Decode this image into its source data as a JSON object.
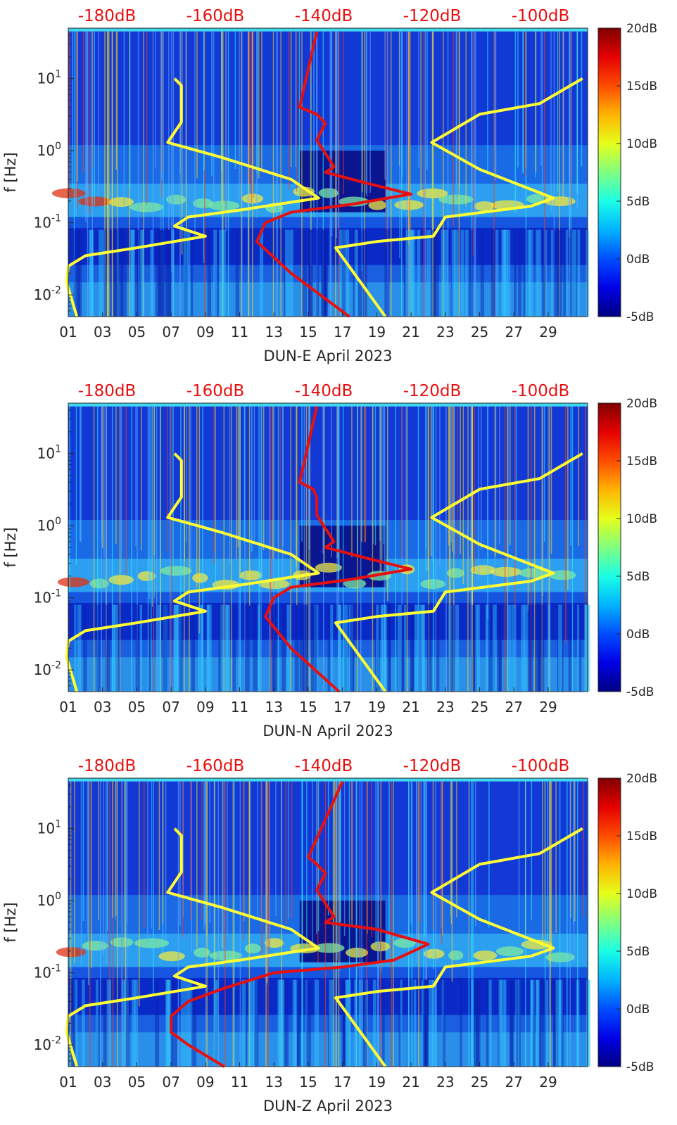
{
  "chart_data": [
    {
      "type": "heatmap",
      "xlabel": "DUN-E April 2023",
      "ylabel": "f [Hz]",
      "xticks": [
        "01",
        "03",
        "05",
        "07",
        "09",
        "11",
        "13",
        "15",
        "17",
        "19",
        "21",
        "23",
        "25",
        "27",
        "29"
      ],
      "yticks": [
        "10^-2",
        "10^-1",
        "10^0",
        "10^1"
      ],
      "ylim": [
        0.005,
        50
      ],
      "yscale": "log",
      "top_axis_labels": [
        "-180dB",
        "-160dB",
        "-140dB",
        "-120dB",
        "-100dB"
      ],
      "colorbar": {
        "labels": [
          "20dB",
          "15dB",
          "10dB",
          "5dB",
          "0dB",
          "-5dB"
        ],
        "range": [
          -5,
          20
        ],
        "colormap": "jet"
      },
      "overlay_lines": [
        {
          "color": "#ffff33",
          "x": [
            7.2,
            7.6,
            7.6,
            6.8,
            10,
            14,
            15.6,
            11,
            8,
            7.2,
            9,
            5,
            2,
            1,
            0.9,
            1.5
          ],
          "y": [
            10,
            8,
            2.5,
            1.3,
            0.8,
            0.4,
            0.22,
            0.15,
            0.12,
            0.09,
            0.065,
            0.045,
            0.035,
            0.025,
            0.015,
            0.005
          ]
        },
        {
          "color": "#ffff33",
          "x": [
            31,
            28.5,
            25,
            22.2,
            25,
            29.3,
            28,
            23,
            22.3,
            19,
            16.6,
            19.5
          ],
          "y": [
            10,
            4.5,
            3.2,
            1.3,
            0.55,
            0.22,
            0.17,
            0.12,
            0.065,
            0.055,
            0.045,
            0.005
          ]
        },
        {
          "color": "#e8100f",
          "x": [
            15.5,
            14.5,
            15.5,
            16,
            15.5,
            16.5,
            16,
            18.5,
            21,
            17.5,
            14,
            12.5,
            12,
            14,
            17.4
          ],
          "y": [
            45,
            4,
            3.2,
            2.4,
            1.4,
            0.6,
            0.5,
            0.35,
            0.25,
            0.18,
            0.14,
            0.1,
            0.055,
            0.02,
            0.005
          ]
        }
      ]
    },
    {
      "type": "heatmap",
      "xlabel": "DUN-N April 2023",
      "ylabel": "f [Hz]",
      "xticks": [
        "01",
        "03",
        "05",
        "07",
        "09",
        "11",
        "13",
        "15",
        "17",
        "19",
        "21",
        "23",
        "25",
        "27",
        "29"
      ],
      "yticks": [
        "10^-2",
        "10^-1",
        "10^0",
        "10^1"
      ],
      "ylim": [
        0.005,
        50
      ],
      "yscale": "log",
      "top_axis_labels": [
        "-180dB",
        "-160dB",
        "-140dB",
        "-120dB",
        "-100dB"
      ],
      "colorbar": {
        "labels": [
          "20dB",
          "15dB",
          "10dB",
          "5dB",
          "0dB",
          "-5dB"
        ],
        "range": [
          -5,
          20
        ],
        "colormap": "jet"
      },
      "overlay_lines": [
        {
          "color": "#ffff33",
          "x": [
            7.2,
            7.6,
            7.6,
            6.8,
            10,
            14,
            15.6,
            11,
            8,
            7.2,
            9,
            5,
            2,
            1,
            0.9,
            1.5
          ],
          "y": [
            10,
            8,
            2.5,
            1.3,
            0.8,
            0.4,
            0.22,
            0.15,
            0.12,
            0.09,
            0.065,
            0.045,
            0.035,
            0.025,
            0.015,
            0.005
          ]
        },
        {
          "color": "#ffff33",
          "x": [
            31,
            28.5,
            25,
            22.2,
            25,
            29.3,
            28,
            23,
            22.3,
            19,
            16.6,
            19.5
          ],
          "y": [
            10,
            4.5,
            3.2,
            1.3,
            0.55,
            0.22,
            0.17,
            0.12,
            0.065,
            0.055,
            0.045,
            0.005
          ]
        },
        {
          "color": "#e8100f",
          "x": [
            15.5,
            14.5,
            15.3,
            15.5,
            15.5,
            16.5,
            16,
            18.5,
            21,
            17.5,
            14,
            13,
            12.5,
            14,
            16.8
          ],
          "y": [
            45,
            4,
            3.2,
            2.4,
            1.4,
            0.6,
            0.5,
            0.35,
            0.25,
            0.18,
            0.14,
            0.1,
            0.055,
            0.02,
            0.005
          ]
        }
      ]
    },
    {
      "type": "heatmap",
      "xlabel": "DUN-Z April 2023",
      "ylabel": "f [Hz]",
      "xticks": [
        "01",
        "03",
        "05",
        "07",
        "09",
        "11",
        "13",
        "15",
        "17",
        "19",
        "21",
        "23",
        "25",
        "27",
        "29"
      ],
      "yticks": [
        "10^-2",
        "10^-1",
        "10^0",
        "10^1"
      ],
      "ylim": [
        0.005,
        50
      ],
      "yscale": "log",
      "top_axis_labels": [
        "-180dB",
        "-160dB",
        "-140dB",
        "-120dB",
        "-100dB"
      ],
      "colorbar": {
        "labels": [
          "20dB",
          "15dB",
          "10dB",
          "5dB",
          "0dB",
          "-5dB"
        ],
        "range": [
          -5,
          20
        ],
        "colormap": "jet"
      },
      "overlay_lines": [
        {
          "color": "#ffff33",
          "x": [
            7.2,
            7.6,
            7.6,
            6.8,
            10,
            14,
            15.6,
            11,
            8,
            7.2,
            9,
            5,
            2,
            1,
            0.9,
            1.5
          ],
          "y": [
            10,
            8,
            2.5,
            1.3,
            0.8,
            0.4,
            0.22,
            0.15,
            0.12,
            0.09,
            0.065,
            0.045,
            0.035,
            0.025,
            0.015,
            0.005
          ]
        },
        {
          "color": "#ffff33",
          "x": [
            31,
            28.5,
            25,
            22.2,
            25,
            29.3,
            28,
            23,
            22.3,
            19,
            16.6,
            19.5
          ],
          "y": [
            10,
            4.5,
            3.2,
            1.3,
            0.55,
            0.22,
            0.17,
            0.12,
            0.065,
            0.055,
            0.045,
            0.005
          ]
        },
        {
          "color": "#e8100f",
          "x": [
            17,
            15,
            15.5,
            16,
            15.5,
            16.5,
            16,
            19,
            22,
            20,
            17,
            13,
            10,
            8,
            7,
            7,
            8,
            10.1
          ],
          "y": [
            45,
            4,
            3.2,
            2.4,
            1.4,
            0.6,
            0.5,
            0.4,
            0.25,
            0.15,
            0.12,
            0.1,
            0.06,
            0.04,
            0.025,
            0.015,
            0.01,
            0.005
          ]
        }
      ]
    }
  ]
}
